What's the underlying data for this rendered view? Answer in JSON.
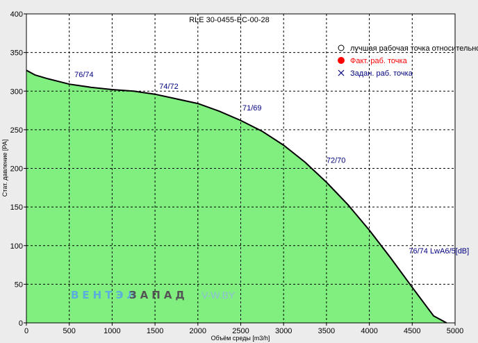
{
  "chart_data": {
    "type": "area",
    "title": "RLE 30-0455-EC-00-28",
    "xlabel": "Объём среды [m3/h]",
    "ylabel": "Стат. давление [PA]",
    "xlim": [
      0,
      5000
    ],
    "ylim": [
      0,
      400
    ],
    "grid": true,
    "x_ticks": [
      "0",
      "500",
      "1000",
      "1500",
      "2000",
      "2500",
      "3000",
      "3500",
      "4000",
      "4500",
      "5000"
    ],
    "y_ticks": [
      "0",
      "50",
      "100",
      "150",
      "200",
      "250",
      "300",
      "350",
      "400"
    ],
    "fill_color": "#80ef80",
    "line_color": "#000000",
    "series": [
      {
        "x": [
          0,
          100,
          250,
          500,
          750,
          1000,
          1250,
          1500,
          1750,
          2000,
          2250,
          2500,
          2750,
          3000,
          3250,
          3500,
          3750,
          4000,
          4250,
          4500,
          4750,
          4900
        ],
        "values": [
          327,
          321,
          316,
          309,
          305,
          302,
          300,
          296,
          290,
          284,
          274,
          262,
          248,
          230,
          208,
          182,
          153,
          120,
          84,
          46,
          9,
          0
        ]
      }
    ],
    "annotations": [
      {
        "text": "76/74",
        "x": 560,
        "y": 318,
        "color": "#000080"
      },
      {
        "text": "74/72",
        "x": 1550,
        "y": 303,
        "color": "#000080"
      },
      {
        "text": "71/69",
        "x": 2520,
        "y": 275,
        "color": "#000080"
      },
      {
        "text": "72/70",
        "x": 3500,
        "y": 207,
        "color": "#000080"
      },
      {
        "text": "76/74 LwA6/5[dB]",
        "x": 4460,
        "y": 90,
        "color": "#000080"
      }
    ],
    "legend": {
      "position": "top-right",
      "items": [
        {
          "label": "лучшая рабочая точка относительно",
          "marker": "circle-outline",
          "color": "#000000"
        },
        {
          "label": "Факт. раб. точка",
          "marker": "circle-filled",
          "color": "#ff0000"
        },
        {
          "label": "Задан. раб. точка",
          "marker": "cross",
          "color": "#000080"
        }
      ]
    }
  },
  "watermark": {
    "part1": "ВЕНТЭЛ",
    "part2": "ЗАПАД",
    "part3": "V-W.BY",
    "color1": "#5aaedc",
    "color2": "#555555",
    "color3": "#8fbcd8"
  }
}
